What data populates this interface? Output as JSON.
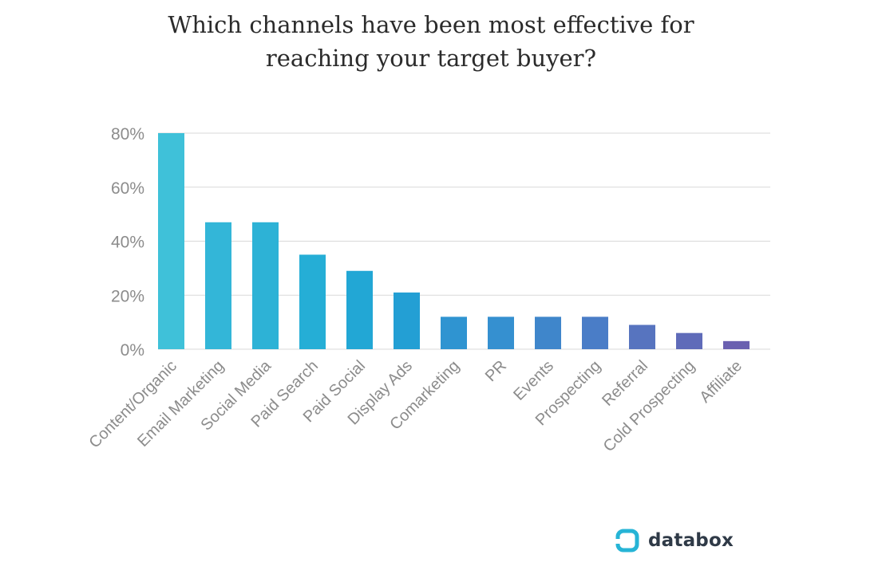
{
  "chart_data": {
    "type": "bar",
    "title_lines": [
      "Which channels have been most effective for",
      "reaching your target buyer?"
    ],
    "categories": [
      "Content/Organic",
      "Email Marketing",
      "Social Media",
      "Paid Search",
      "Paid Social",
      "Display Ads",
      "Comarketing",
      "PR",
      "Events",
      "Prospecting",
      "Referral",
      "Cold Prospecting",
      "Affiliate"
    ],
    "values": [
      80,
      47,
      47,
      35,
      29,
      21,
      12,
      12,
      12,
      12,
      9,
      6,
      3
    ],
    "xlabel": "",
    "ylabel": "",
    "ylim": [
      0,
      80
    ],
    "yticks": [
      0,
      20,
      40,
      60,
      80
    ],
    "ytick_labels": [
      "0%",
      "20%",
      "40%",
      "60%",
      "80%"
    ],
    "grid": true,
    "bar_colors": [
      "#3fc1d9",
      "#33b6d8",
      "#2db2d6",
      "#25aed6",
      "#22a7d5",
      "#239fd4",
      "#2f94d1",
      "#3590d0",
      "#3f86cb",
      "#4a7dc7",
      "#5774bf",
      "#5f6bb9",
      "#6a60b0"
    ],
    "grid_color": "#d9d9d9",
    "tick_color": "#8c8c8c"
  },
  "brand": {
    "name": "databox",
    "accent": "#26b4d6"
  }
}
